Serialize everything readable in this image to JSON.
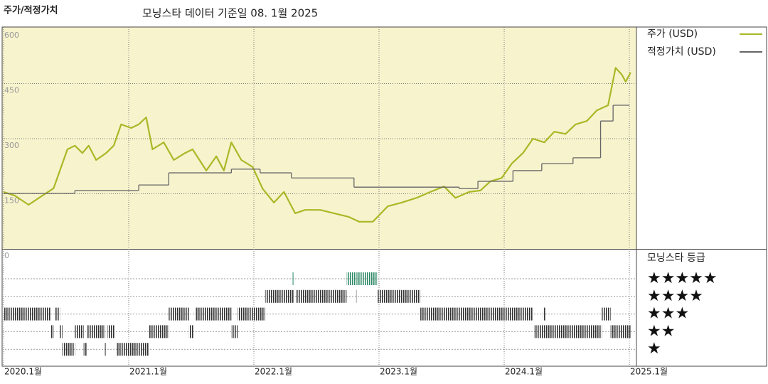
{
  "chart_data": [
    {
      "type": "line",
      "title": "주가/적정가치",
      "subtitle": "모닝스타 데이터 기준일 08. 1월 2025",
      "xlim": [
        2020,
        2025.06
      ],
      "xticks": [
        {
          "value": 2020,
          "label": "2020.1월"
        },
        {
          "value": 2021,
          "label": "2021.1월"
        },
        {
          "value": 2022,
          "label": "2022.1월"
        },
        {
          "value": 2023,
          "label": "2023.1월"
        },
        {
          "value": 2024,
          "label": "2024.1월"
        },
        {
          "value": 2025,
          "label": "2025.1월"
        }
      ],
      "ylim": [
        0,
        600
      ],
      "yticks": [
        0,
        150,
        300,
        450,
        600
      ],
      "grid": true,
      "legend": "right",
      "series": [
        {
          "name": "주가 (USD)",
          "color": "#a9b826",
          "step": false,
          "x": [
            2020.0,
            2020.09,
            2020.2,
            2020.31,
            2020.4,
            2020.45,
            2020.51,
            2020.57,
            2020.63,
            2020.68,
            2020.74,
            2020.82,
            2020.88,
            2020.94,
            2021.02,
            2021.08,
            2021.14,
            2021.19,
            2021.28,
            2021.36,
            2021.45,
            2021.51,
            2021.62,
            2021.7,
            2021.76,
            2021.82,
            2021.9,
            2021.99,
            2022.07,
            2022.16,
            2022.24,
            2022.33,
            2022.41,
            2022.53,
            2022.64,
            2022.76,
            2022.84,
            2022.95,
            2023.07,
            2023.18,
            2023.3,
            2023.41,
            2023.52,
            2023.61,
            2023.72,
            2023.81,
            2023.89,
            2023.98,
            2024.06,
            2024.15,
            2024.23,
            2024.32,
            2024.4,
            2024.49,
            2024.57,
            2024.66,
            2024.74,
            2024.83,
            2024.89,
            2024.94,
            2024.97,
            2025.01
          ],
          "values": [
            155,
            145,
            120,
            145,
            165,
            213,
            271,
            281,
            261,
            281,
            242,
            261,
            281,
            339,
            329,
            339,
            358,
            271,
            290,
            242,
            261,
            271,
            213,
            252,
            213,
            290,
            242,
            223,
            164,
            126,
            155,
            97,
            106,
            106,
            97,
            87,
            74,
            74,
            116,
            126,
            139,
            155,
            170,
            139,
            155,
            159,
            184,
            193,
            232,
            261,
            300,
            290,
            319,
            313,
            339,
            348,
            377,
            391,
            493,
            474,
            455,
            480
          ]
        },
        {
          "name": "적정가치 (USD)",
          "color": "#666666",
          "step": true,
          "x": [
            2020.0,
            2020.57,
            2021.08,
            2021.32,
            2021.82,
            2022.05,
            2022.3,
            2022.8,
            2023.64,
            2023.79,
            2024.07,
            2024.3,
            2024.55,
            2024.77,
            2024.87,
            2025.0
          ],
          "values": [
            151,
            159,
            174,
            207,
            217,
            207,
            193,
            168,
            164,
            184,
            213,
            232,
            248,
            348,
            391,
            391
          ]
        }
      ]
    },
    {
      "type": "timeline",
      "title": "모닝스타 등급",
      "categories": [
        "★★★★★",
        "★★★★",
        "★★★",
        "★★",
        "★"
      ],
      "levels": [
        5,
        4,
        3,
        2,
        1
      ],
      "colors": [
        "#2f8a68",
        "#333333",
        "#333333",
        "#333333",
        "#333333"
      ],
      "segments": [
        {
          "start": 2020.0,
          "end": 2020.38,
          "value": 3
        },
        {
          "start": 2020.41,
          "end": 2020.45,
          "value": 3
        },
        {
          "start": 2021.32,
          "end": 2021.48,
          "value": 3
        },
        {
          "start": 2021.53,
          "end": 2021.82,
          "value": 3
        },
        {
          "start": 2021.87,
          "end": 2022.09,
          "value": 3
        },
        {
          "start": 2023.33,
          "end": 2024.23,
          "value": 3
        },
        {
          "start": 2024.31,
          "end": 2024.33,
          "value": 3
        },
        {
          "start": 2024.78,
          "end": 2024.85,
          "value": 3
        },
        {
          "start": 2020.38,
          "end": 2020.4,
          "value": 2
        },
        {
          "start": 2020.45,
          "end": 2020.47,
          "value": 2
        },
        {
          "start": 2020.57,
          "end": 2020.64,
          "value": 2
        },
        {
          "start": 2020.67,
          "end": 2020.81,
          "value": 2
        },
        {
          "start": 2020.83,
          "end": 2020.89,
          "value": 2
        },
        {
          "start": 2021.16,
          "end": 2021.32,
          "value": 2
        },
        {
          "start": 2021.48,
          "end": 2021.52,
          "value": 2
        },
        {
          "start": 2021.82,
          "end": 2021.87,
          "value": 2
        },
        {
          "start": 2024.24,
          "end": 2024.78,
          "value": 2
        },
        {
          "start": 2024.85,
          "end": 2025.01,
          "value": 2
        },
        {
          "start": 2020.47,
          "end": 2020.57,
          "value": 1
        },
        {
          "start": 2020.64,
          "end": 2020.67,
          "value": 1
        },
        {
          "start": 2020.81,
          "end": 2020.82,
          "value": 1
        },
        {
          "start": 2020.9,
          "end": 2021.16,
          "value": 1
        },
        {
          "start": 2022.09,
          "end": 2022.32,
          "value": 4
        },
        {
          "start": 2022.34,
          "end": 2022.74,
          "value": 4
        },
        {
          "start": 2022.81,
          "end": 2022.82,
          "value": 4
        },
        {
          "start": 2022.99,
          "end": 2023.33,
          "value": 4
        },
        {
          "start": 2022.31,
          "end": 2022.32,
          "value": 5
        },
        {
          "start": 2022.74,
          "end": 2022.81,
          "value": 5
        },
        {
          "start": 2022.82,
          "end": 2022.99,
          "value": 5
        }
      ]
    }
  ]
}
